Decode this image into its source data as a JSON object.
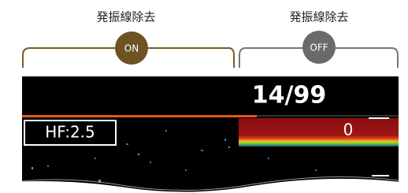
{
  "panels": [
    {
      "label": "発振線除去",
      "state": "ON"
    },
    {
      "label": "発振線除去",
      "state": "OFF"
    }
  ],
  "display": {
    "counter": "14/99",
    "hf_label": "HF:2.5",
    "depth_value": "0"
  }
}
